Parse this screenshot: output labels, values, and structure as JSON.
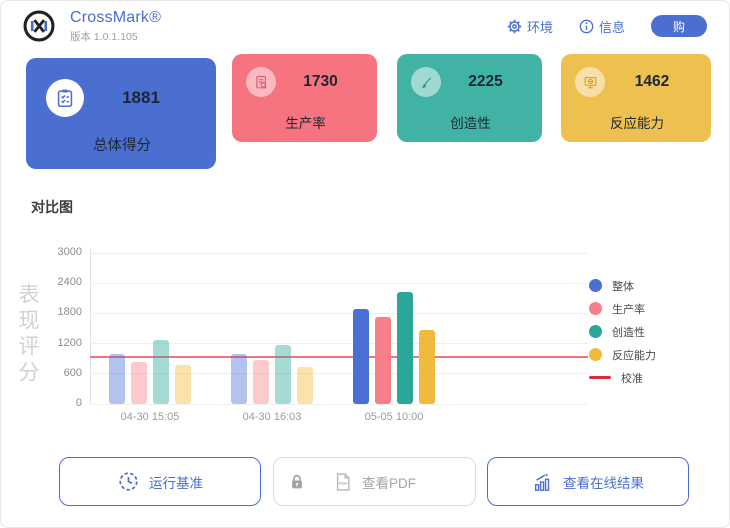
{
  "header": {
    "app_name": "CrossMark®",
    "version": "版本 1.0.1.105",
    "environment_label": "环境",
    "info_label": "信息",
    "buy_label": "购"
  },
  "cards": [
    {
      "label": "总体得分",
      "score": "1881",
      "color": "#4a6fd0",
      "icon": "clipboard-check-icon"
    },
    {
      "label": "生产率",
      "score": "1730",
      "color": "#f5747f",
      "icon": "document-search-icon"
    },
    {
      "label": "创造性",
      "score": "2225",
      "color": "#41b3a5",
      "icon": "paintbrush-icon"
    },
    {
      "label": "反应能力",
      "score": "1462",
      "color": "#eec04f",
      "icon": "monitor-icon"
    }
  ],
  "chart_data": {
    "type": "bar",
    "title": "对比图",
    "ylabel": "表现评分",
    "ylim": [
      0,
      3000
    ],
    "yticks": [
      0,
      600,
      1200,
      1800,
      2400,
      3000
    ],
    "categories": [
      "04-30 15:05",
      "04-30 16:03",
      "05-05 10:00"
    ],
    "series": [
      {
        "name": "整体",
        "color": "#4a70d6",
        "values": [
          1000,
          990,
          1881
        ]
      },
      {
        "name": "生产率",
        "color": "#f77f89",
        "values": [
          830,
          875,
          1730
        ]
      },
      {
        "name": "创造性",
        "color": "#2ba79a",
        "values": [
          1280,
          1170,
          2225
        ]
      },
      {
        "name": "反应能力",
        "color": "#f2ba3c",
        "values": [
          770,
          740,
          1462
        ]
      }
    ],
    "calibration": {
      "name": "校准",
      "value": 930,
      "line_color": "#f0737e",
      "legend_color": "#e02c38"
    },
    "faded_runs": [
      0,
      1
    ],
    "legend_position": "right",
    "grid": true
  },
  "buttons": {
    "run": {
      "label": "运行基准",
      "icon": "clock-icon"
    },
    "pdf": {
      "label": "查看PDF",
      "icons": [
        "lock-icon",
        "pdf-file-icon"
      ],
      "disabled": true
    },
    "online": {
      "label": "查看在线结果",
      "icon": "bar-chart-arrow-icon"
    }
  }
}
